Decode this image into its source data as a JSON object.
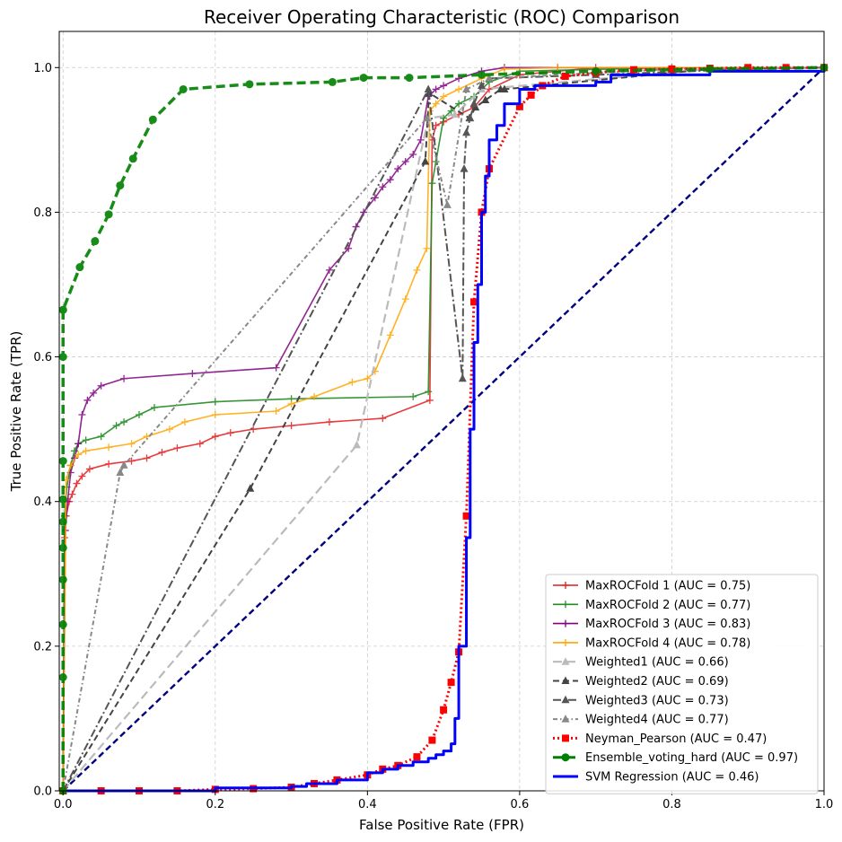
{
  "chart_data": {
    "type": "line",
    "title": "Receiver Operating Characteristic (ROC) Comparison",
    "xlabel": "False Positive Rate (FPR)",
    "ylabel": "True Positive Rate (TPR)",
    "xlim": [
      -0.005,
      1.0
    ],
    "ylim": [
      0.0,
      1.05
    ],
    "xticks": [
      0.0,
      0.2,
      0.4,
      0.6,
      0.8,
      1.0
    ],
    "xtick_labels": [
      "0.0",
      "0.2",
      "0.4",
      "0.6",
      "0.8",
      "1.0"
    ],
    "yticks": [
      0.0,
      0.2,
      0.4,
      0.6,
      0.8,
      1.0
    ],
    "ytick_labels": [
      "0.0",
      "0.2",
      "0.4",
      "0.6",
      "0.8",
      "1.0"
    ],
    "grid": true,
    "legend_position": "lower-right",
    "series": [
      {
        "name": "MaxROCFold 1 (AUC = 0.75)",
        "color": "#e41a1c",
        "dash": "solid",
        "width": 1.6,
        "marker": "plus",
        "opacity": 0.85,
        "x": [
          0.0,
          0.002,
          0.004,
          0.008,
          0.012,
          0.018,
          0.025,
          0.035,
          0.06,
          0.09,
          0.11,
          0.13,
          0.15,
          0.18,
          0.2,
          0.22,
          0.25,
          0.3,
          0.35,
          0.42,
          0.482,
          0.485,
          0.49,
          0.5,
          0.52,
          0.54,
          0.56,
          0.6,
          0.7,
          1.0
        ],
        "y": [
          0.0,
          0.35,
          0.38,
          0.4,
          0.41,
          0.425,
          0.435,
          0.445,
          0.452,
          0.456,
          0.46,
          0.468,
          0.474,
          0.48,
          0.49,
          0.495,
          0.5,
          0.505,
          0.51,
          0.515,
          0.54,
          0.9,
          0.92,
          0.925,
          0.935,
          0.945,
          0.97,
          0.99,
          1.0,
          1.0
        ]
      },
      {
        "name": "MaxROCFold 2 (AUC = 0.77)",
        "color": "#228b22",
        "dash": "solid",
        "width": 1.6,
        "marker": "plus",
        "opacity": 0.9,
        "x": [
          0.0,
          0.002,
          0.005,
          0.01,
          0.015,
          0.02,
          0.03,
          0.05,
          0.07,
          0.08,
          0.1,
          0.12,
          0.2,
          0.3,
          0.46,
          0.48,
          0.485,
          0.49,
          0.5,
          0.51,
          0.52,
          0.54,
          0.56,
          0.6,
          0.8,
          1.0
        ],
        "y": [
          0.0,
          0.38,
          0.42,
          0.45,
          0.47,
          0.48,
          0.485,
          0.49,
          0.505,
          0.51,
          0.52,
          0.53,
          0.538,
          0.542,
          0.545,
          0.552,
          0.84,
          0.87,
          0.93,
          0.94,
          0.95,
          0.96,
          0.98,
          0.995,
          1.0,
          1.0
        ]
      },
      {
        "name": "MaxROCFold 3 (AUC = 0.83)",
        "color": "#800080",
        "dash": "solid",
        "width": 1.6,
        "marker": "plus",
        "opacity": 0.85,
        "x": [
          0.0,
          0.003,
          0.006,
          0.01,
          0.015,
          0.02,
          0.025,
          0.032,
          0.04,
          0.05,
          0.08,
          0.17,
          0.28,
          0.35,
          0.375,
          0.385,
          0.395,
          0.41,
          0.42,
          0.43,
          0.44,
          0.45,
          0.46,
          0.47,
          0.48,
          0.49,
          0.5,
          0.52,
          0.55,
          0.58,
          0.65,
          1.0
        ],
        "y": [
          0.0,
          0.36,
          0.4,
          0.44,
          0.46,
          0.48,
          0.52,
          0.54,
          0.55,
          0.56,
          0.57,
          0.577,
          0.585,
          0.72,
          0.75,
          0.78,
          0.8,
          0.82,
          0.835,
          0.845,
          0.86,
          0.87,
          0.88,
          0.9,
          0.96,
          0.97,
          0.975,
          0.985,
          0.995,
          1.0,
          1.0,
          1.0
        ]
      },
      {
        "name": "MaxROCFold 4 (AUC = 0.78)",
        "color": "#ffa500",
        "dash": "solid",
        "width": 1.6,
        "marker": "plus",
        "opacity": 0.85,
        "x": [
          0.0,
          0.004,
          0.01,
          0.02,
          0.03,
          0.06,
          0.09,
          0.11,
          0.14,
          0.16,
          0.2,
          0.28,
          0.3,
          0.33,
          0.38,
          0.4,
          0.41,
          0.43,
          0.45,
          0.465,
          0.478,
          0.482,
          0.49,
          0.5,
          0.52,
          0.55,
          0.58,
          0.65,
          1.0
        ],
        "y": [
          0.0,
          0.43,
          0.45,
          0.465,
          0.47,
          0.475,
          0.48,
          0.49,
          0.5,
          0.51,
          0.52,
          0.525,
          0.535,
          0.545,
          0.565,
          0.57,
          0.58,
          0.63,
          0.68,
          0.72,
          0.75,
          0.94,
          0.95,
          0.96,
          0.97,
          0.985,
          0.998,
          1.0,
          1.0
        ]
      },
      {
        "name": "Weighted1 (AUC = 0.66)",
        "color": "#bbbbbb",
        "dash": "longdash",
        "width": 2.2,
        "marker": "triangle",
        "x": [
          0.0,
          0.386,
          0.48,
          0.515,
          0.55,
          0.85,
          1.0
        ],
        "y": [
          0.0,
          0.478,
          0.93,
          0.935,
          0.97,
          0.998,
          1.0
        ]
      },
      {
        "name": "Weighted2 (AUC = 0.69)",
        "color": "#444444",
        "dash": "dashed",
        "width": 2.0,
        "marker": "triangle",
        "x": [
          0.0,
          0.246,
          0.476,
          0.481,
          0.534,
          0.542,
          0.555,
          0.575,
          0.58,
          0.85,
          1.0
        ],
        "y": [
          0.0,
          0.418,
          0.87,
          0.965,
          0.93,
          0.945,
          0.955,
          0.97,
          0.97,
          0.998,
          1.0
        ]
      },
      {
        "name": "Weighted3 (AUC = 0.73)",
        "color": "#555555",
        "dash": "dashdot",
        "width": 2.0,
        "marker": "triangle",
        "x": [
          0.0,
          0.48,
          0.525,
          0.527,
          0.53,
          0.535,
          0.54,
          0.55,
          0.56,
          0.7,
          0.9,
          1.0
        ],
        "y": [
          0.0,
          0.97,
          0.57,
          0.86,
          0.91,
          0.93,
          0.95,
          0.975,
          0.985,
          0.99,
          0.998,
          1.0
        ]
      },
      {
        "name": "Weighted4 (AUC = 0.77)",
        "color": "#888888",
        "dash": "dotdash",
        "width": 2.0,
        "marker": "triangle",
        "x": [
          0.0,
          0.075,
          0.08,
          0.478,
          0.505,
          0.53,
          0.56,
          0.8,
          1.0
        ],
        "y": [
          0.0,
          0.44,
          0.45,
          0.93,
          0.81,
          0.97,
          0.985,
          0.998,
          1.0
        ]
      },
      {
        "name": "Neyman_Pearson (AUC = 0.47)",
        "color": "#ff0000",
        "dash": "dotted",
        "width": 3.0,
        "marker": "square",
        "x": [
          0.0,
          0.05,
          0.1,
          0.15,
          0.2,
          0.25,
          0.3,
          0.33,
          0.36,
          0.4,
          0.42,
          0.44,
          0.465,
          0.485,
          0.5,
          0.51,
          0.52,
          0.53,
          0.54,
          0.55,
          0.56,
          0.6,
          0.615,
          0.63,
          0.66,
          0.7,
          0.75,
          0.8,
          0.85,
          0.9,
          0.95,
          1.0
        ],
        "y": [
          0.0,
          0.0,
          0.0,
          0.0,
          0.002,
          0.003,
          0.005,
          0.01,
          0.015,
          0.022,
          0.03,
          0.035,
          0.047,
          0.07,
          0.112,
          0.15,
          0.192,
          0.38,
          0.676,
          0.8,
          0.86,
          0.946,
          0.962,
          0.975,
          0.988,
          0.993,
          0.997,
          0.998,
          0.999,
          1.0,
          1.0,
          1.0
        ]
      },
      {
        "name": "Ensemble_voting_hard (AUC = 0.97)",
        "color": "#008000",
        "dash": "longdash",
        "width": 3.5,
        "marker": "circle",
        "opacity": 0.9,
        "x": [
          0.0,
          0.0,
          0.0,
          0.0,
          0.0,
          0.0,
          0.0,
          0.0,
          0.0,
          0.0,
          0.0,
          0.022,
          0.042,
          0.06,
          0.075,
          0.092,
          0.118,
          0.158,
          0.245,
          0.354,
          0.395,
          0.455,
          0.55,
          0.7,
          0.85,
          1.0
        ],
        "y": [
          0.0,
          0.157,
          0.23,
          0.292,
          0.336,
          0.372,
          0.403,
          0.456,
          0.6,
          0.665,
          0.665,
          0.724,
          0.76,
          0.797,
          0.837,
          0.874,
          0.928,
          0.97,
          0.977,
          0.98,
          0.986,
          0.986,
          0.99,
          0.995,
          0.998,
          1.0
        ]
      },
      {
        "name": "SVM Regression (AUC = 0.46)",
        "color": "#0000ff",
        "dash": "solid",
        "width": 3.0,
        "marker": "none",
        "step": true,
        "x": [
          0.0,
          0.2,
          0.3,
          0.32,
          0.36,
          0.4,
          0.42,
          0.44,
          0.46,
          0.48,
          0.49,
          0.5,
          0.51,
          0.515,
          0.52,
          0.53,
          0.535,
          0.54,
          0.545,
          0.55,
          0.555,
          0.56,
          0.57,
          0.58,
          0.6,
          0.62,
          0.7,
          0.72,
          0.85,
          1.0
        ],
        "y": [
          0.0,
          0.004,
          0.006,
          0.01,
          0.015,
          0.025,
          0.03,
          0.035,
          0.04,
          0.045,
          0.05,
          0.055,
          0.065,
          0.1,
          0.2,
          0.35,
          0.5,
          0.62,
          0.7,
          0.8,
          0.85,
          0.9,
          0.92,
          0.95,
          0.97,
          0.975,
          0.98,
          0.99,
          0.995,
          1.0
        ]
      },
      {
        "name": "",
        "color": "#000080",
        "dash": "dashed",
        "width": 2.4,
        "marker": "none",
        "legend": false,
        "x": [
          0.0,
          1.0
        ],
        "y": [
          0.0,
          1.0
        ]
      }
    ]
  }
}
